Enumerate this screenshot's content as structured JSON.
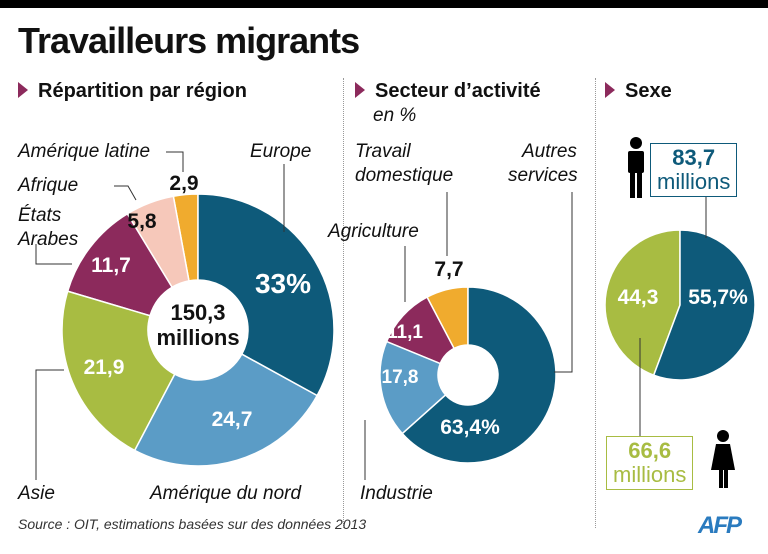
{
  "title": "Travailleurs migrants",
  "sections": {
    "region": "Répartition par région",
    "sector": "Secteur d’activité",
    "sector_unit": "en %",
    "sex": "Sexe"
  },
  "region_center": {
    "value": "150,3",
    "unit": "millions"
  },
  "source": "Source : OIT, estimations basées sur des données 2013",
  "logo": "AFP",
  "sex_boxes": {
    "men_value": "83,7",
    "men_unit": "millions",
    "women_value": "66,6",
    "women_unit": "millions"
  },
  "chart_data": [
    {
      "type": "pie",
      "title": "Répartition par région",
      "donut": true,
      "categories": [
        "Europe",
        "Amérique du nord",
        "Asie",
        "États Arabes",
        "Afrique",
        "Amérique latine"
      ],
      "values": [
        33,
        24.7,
        21.9,
        11.7,
        5.8,
        2.9
      ],
      "labels": [
        "33%",
        "24,7",
        "21,9",
        "11,7",
        "5,8",
        "2,9"
      ],
      "colors": [
        "#0e5a7a",
        "#5b9cc6",
        "#a8bc42",
        "#8c2a5c",
        "#f6c8ba",
        "#f0ab2e"
      ]
    },
    {
      "type": "pie",
      "title": "Secteur d’activité",
      "unit": "en %",
      "donut": true,
      "categories": [
        "Autres services",
        "Industrie",
        "Agriculture",
        "Travail domestique"
      ],
      "values": [
        63.4,
        17.8,
        11.1,
        7.7
      ],
      "labels": [
        "63,4%",
        "17,8",
        "11,1",
        "7,7"
      ],
      "colors": [
        "#0e5a7a",
        "#5b9cc6",
        "#8c2a5c",
        "#f0ab2e"
      ]
    },
    {
      "type": "pie",
      "title": "Sexe",
      "categories": [
        "Hommes",
        "Femmes"
      ],
      "values": [
        55.7,
        44.3
      ],
      "labels": [
        "55,7%",
        "44,3"
      ],
      "colors": [
        "#0e5a7a",
        "#a8bc42"
      ]
    }
  ],
  "region_label_names": [
    "Europe",
    "Amérique du nord",
    "Asie",
    "États",
    "Arabes",
    "Afrique",
    "Amérique latine"
  ],
  "sector_label_names": [
    "Autres",
    "services",
    "Industrie",
    "Agriculture",
    "Travail",
    "domestique"
  ]
}
